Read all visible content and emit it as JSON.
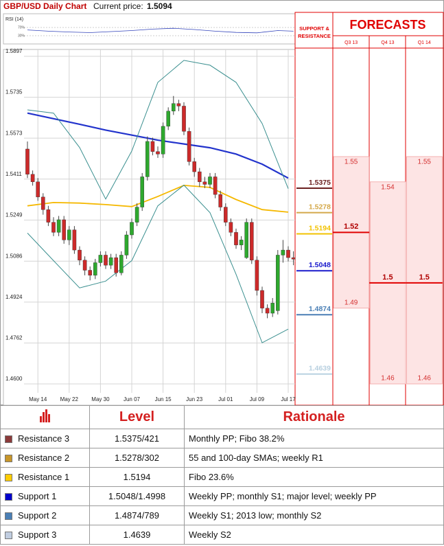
{
  "chart_data": {
    "type": "candlestick",
    "title": "GBP/USD Daily Chart",
    "price_label": "Current price:",
    "current_price": 1.5094,
    "categories": [
      null,
      null,
      "May 14",
      null,
      null,
      null,
      null,
      null,
      "May 22",
      null,
      null,
      null,
      null,
      null,
      "May 30",
      null,
      null,
      null,
      null,
      null,
      "Jun 07",
      null,
      null,
      null,
      null,
      null,
      "Jun 15",
      null,
      null,
      null,
      null,
      null,
      "Jun 23",
      null,
      null,
      null,
      null,
      null,
      "Jul 01",
      null,
      null,
      null,
      null,
      null,
      "Jul 09",
      null,
      null,
      null,
      null,
      null,
      "Jul 17",
      null
    ],
    "open": [
      1.553,
      1.543,
      1.54,
      1.534,
      1.529,
      1.524,
      1.52,
      1.525,
      1.517,
      1.521,
      1.513,
      1.509,
      1.505,
      1.503,
      1.508,
      1.511,
      1.507,
      1.51,
      1.504,
      1.511,
      1.519,
      1.524,
      1.53,
      1.542,
      1.556,
      1.552,
      1.551,
      1.562,
      1.568,
      1.571,
      1.57,
      1.56,
      1.548,
      1.544,
      1.54,
      1.539,
      1.542,
      1.535,
      1.53,
      1.524,
      1.52,
      1.515,
      1.51,
      1.524,
      1.509,
      1.497,
      1.49,
      1.488,
      1.489,
      1.511,
      1.513,
      1.51
    ],
    "high": [
      1.556,
      1.5445,
      1.5415,
      1.5355,
      1.5305,
      1.526,
      1.5265,
      1.5265,
      1.5225,
      1.5225,
      1.5145,
      1.5105,
      1.5065,
      1.5095,
      1.5125,
      1.5125,
      1.5115,
      1.5115,
      1.5125,
      1.5205,
      1.5255,
      1.5315,
      1.5435,
      1.558,
      1.5575,
      1.554,
      1.5635,
      1.5695,
      1.574,
      1.5725,
      1.5715,
      1.5615,
      1.5495,
      1.5455,
      1.542,
      1.5435,
      1.5435,
      1.5365,
      1.5315,
      1.5255,
      1.5215,
      1.5185,
      1.5255,
      1.5255,
      1.5105,
      1.4985,
      1.4915,
      1.494,
      1.513,
      1.517,
      1.5145,
      1.5125
    ],
    "low": [
      1.5415,
      1.5385,
      1.5325,
      1.527,
      1.5225,
      1.5185,
      1.5185,
      1.5155,
      1.515,
      1.5115,
      1.507,
      1.503,
      1.501,
      1.5015,
      1.5065,
      1.5055,
      1.5055,
      1.5025,
      1.503,
      1.5095,
      1.5175,
      1.5225,
      1.5285,
      1.5405,
      1.5505,
      1.5495,
      1.5495,
      1.5605,
      1.5665,
      1.568,
      1.5585,
      1.5465,
      1.542,
      1.538,
      1.5375,
      1.5375,
      1.5335,
      1.5285,
      1.5225,
      1.5185,
      1.5135,
      1.513,
      1.5095,
      1.5075,
      1.495,
      1.488,
      1.486,
      1.4865,
      1.4875,
      1.508,
      1.5085,
      1.507
    ],
    "close": [
      1.543,
      1.54,
      1.534,
      1.529,
      1.524,
      1.52,
      1.525,
      1.517,
      1.521,
      1.513,
      1.509,
      1.505,
      1.503,
      1.508,
      1.511,
      1.507,
      1.51,
      1.504,
      1.511,
      1.519,
      1.524,
      1.53,
      1.542,
      1.556,
      1.552,
      1.551,
      1.562,
      1.568,
      1.571,
      1.57,
      1.56,
      1.548,
      1.544,
      1.54,
      1.539,
      1.542,
      1.535,
      1.53,
      1.524,
      1.52,
      1.515,
      1.517,
      1.524,
      1.509,
      1.497,
      1.49,
      1.488,
      1.492,
      1.511,
      1.513,
      1.51,
      1.5094
    ],
    "up_color": "#2ea82e",
    "down_color": "#cc2a2a",
    "ylim": [
      1.46,
      1.5897
    ],
    "yticks": [
      1.5897,
      1.5735,
      1.5573,
      1.5411,
      1.5249,
      1.5086,
      1.4924,
      1.4762,
      {
        "value": 1.46,
        "label": "1.4600"
      }
    ],
    "grid": true,
    "overlays": [
      {
        "color": "#2233cc",
        "x": [
          0,
          5,
          10,
          15,
          20,
          25,
          30,
          35,
          40,
          45,
          50
        ],
        "values": [
          1.5672,
          1.565,
          1.5628,
          1.5605,
          1.5585,
          1.5565,
          1.555,
          1.5535,
          1.551,
          1.547,
          1.5415
        ]
      },
      {
        "color": "#f5b800",
        "x": [
          0,
          5,
          10,
          15,
          20,
          25,
          30,
          35,
          40,
          45,
          50
        ],
        "values": [
          1.5305,
          1.5318,
          1.5316,
          1.531,
          1.5302,
          1.5342,
          1.5386,
          1.5378,
          1.533,
          1.529,
          1.528
        ]
      },
      {
        "color": "#3a8f8f",
        "x": [
          0,
          5,
          10,
          15,
          20,
          25,
          30,
          35,
          40,
          45,
          50
        ],
        "values": [
          1.5685,
          1.5672,
          1.5536,
          1.5332,
          1.5522,
          1.5794,
          1.5881,
          1.5862,
          1.5794,
          1.5631,
          1.5373
        ]
      },
      {
        "color": "#3a8f8f",
        "x": [
          0,
          5,
          10,
          15,
          20,
          25,
          30,
          35,
          40,
          45,
          50
        ],
        "values": [
          1.5197,
          1.5088,
          1.498,
          1.5007,
          1.5088,
          1.5305,
          1.5387,
          1.5278,
          1.5034,
          1.4763,
          1.4817
        ]
      }
    ],
    "rsi": {
      "title": "RSI (14)",
      "ylim": [
        0,
        100
      ],
      "yticks": [
        {
          "value": 70,
          "label": "70%"
        },
        {
          "value": 30,
          "label": "30%"
        }
      ],
      "color": "#3344bb",
      "x": [
        0,
        4,
        8,
        12,
        16,
        20,
        24,
        28,
        32,
        36,
        40,
        44,
        48,
        51
      ],
      "values": [
        58,
        52,
        48,
        45,
        50,
        55,
        62,
        66,
        60,
        52,
        46,
        44,
        55,
        52
      ]
    },
    "levels": {
      "title_lines": [
        "SUPPORT &",
        "RESISTANCE"
      ],
      "items": [
        {
          "value": 1.5375,
          "color": "#6b1f1f"
        },
        {
          "value": 1.5278,
          "color": "#d4a84a"
        },
        {
          "value": 1.5194,
          "color": "#f2c200"
        },
        {
          "value": 1.5048,
          "color": "#1a1acc"
        },
        {
          "value": 1.4874,
          "color": "#4a7fb5"
        },
        {
          "value": 1.4639,
          "color": "#b8d0e0"
        }
      ]
    },
    "forecasts": {
      "title": "FORECASTS",
      "color": "#e00000",
      "periods": [
        {
          "name": "Q3 13",
          "high": 1.55,
          "mid": 1.52,
          "low": 1.49
        },
        {
          "name": "Q4 13",
          "high": 1.54,
          "mid": 1.5,
          "low": 1.46
        },
        {
          "name": "Q1 14",
          "high": 1.55,
          "mid": 1.5,
          "low": 1.46
        }
      ]
    }
  },
  "table": {
    "header": [
      "Level",
      "Rationale"
    ],
    "rows": [
      [
        "Resistance 3",
        "1.5375/421",
        "Monthly PP; Fibo 38.2%"
      ],
      [
        "Resistance 2",
        "1.5278/302",
        "55 and 100-day SMAs; weekly R1"
      ],
      [
        "Resistance 1",
        "1.5194",
        "Fibo 23.6%"
      ],
      [
        "Support 1",
        "1.5048/1.4998",
        "Weekly PP; monthly S1;  major level; weekly PP"
      ],
      [
        "Support 2",
        "1.4874/789",
        "Weekly S1; 2013 low; monthly S2"
      ],
      [
        "Support 3",
        "1.4639",
        "Weekly S2"
      ]
    ],
    "swatch_colors": [
      "#8b3a3a",
      "#c8962a",
      "#ffcc00",
      "#0000cc",
      "#4a7fb5",
      "#c0cde0"
    ]
  }
}
